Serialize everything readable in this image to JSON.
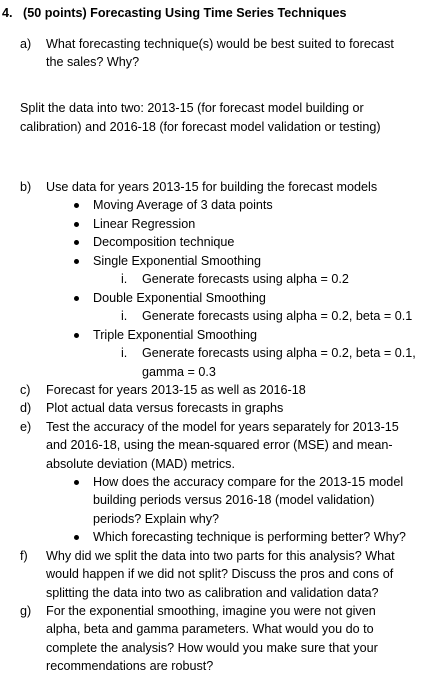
{
  "question": {
    "number": "4.",
    "title": "(50 points) Forecasting Using Time Series Techniques"
  },
  "part_a": {
    "marker": "a)",
    "lines": [
      "What forecasting technique(s) would be best suited to forecast",
      "the sales? Why?"
    ]
  },
  "split_paragraph": {
    "lines": [
      "Split the data into two: 2013-15 (for forecast model building or",
      "calibration) and 2016-18 (for forecast model validation or testing)"
    ]
  },
  "part_b": {
    "marker": "b)",
    "intro": "Use data for years 2013-15 for building the forecast models",
    "techniques": [
      {
        "label": "Moving Average of 3 data points"
      },
      {
        "label": "Linear Regression"
      },
      {
        "label": "Decomposition technique"
      },
      {
        "label": "Single Exponential Smoothing",
        "sub_marker": "i.",
        "sub_lines": [
          "Generate forecasts using alpha = 0.2"
        ]
      },
      {
        "label": "Double Exponential Smoothing",
        "sub_marker": "i.",
        "sub_lines": [
          "Generate forecasts using alpha = 0.2, beta = 0.1"
        ]
      },
      {
        "label": "Triple Exponential Smoothing",
        "sub_marker": "i.",
        "sub_lines": [
          "Generate forecasts using alpha = 0.2, beta = 0.1,",
          "gamma = 0.3"
        ]
      }
    ]
  },
  "part_c": {
    "marker": "c)",
    "lines": [
      "Forecast for years 2013-15 as well as 2016-18"
    ]
  },
  "part_d": {
    "marker": "d)",
    "lines": [
      "Plot actual data versus forecasts in graphs"
    ]
  },
  "part_e": {
    "marker": "e)",
    "lines": [
      "Test the accuracy of the model for years separately for 2013-15",
      "and 2016-18, using the mean-squared error (MSE) and mean-",
      "absolute deviation (MAD) metrics."
    ],
    "bullets": [
      {
        "lines": [
          "How does the accuracy compare for the 2013-15 model",
          "building periods versus 2016-18 (model validation)",
          "periods? Explain why?"
        ]
      },
      {
        "lines": [
          "Which forecasting technique is performing better? Why?"
        ]
      }
    ]
  },
  "part_f": {
    "marker": "f)",
    "lines": [
      "Why did we split the data into two parts for this analysis? What",
      "would happen if we did not split? Discuss the pros and cons of",
      "splitting the data into two as calibration and validation data?"
    ]
  },
  "part_g": {
    "marker": "g)",
    "lines": [
      "For the exponential smoothing, imagine you were not given",
      "alpha, beta and gamma parameters. What would you do to",
      "complete the analysis? How would you make sure that your",
      "recommendations are robust?"
    ]
  }
}
